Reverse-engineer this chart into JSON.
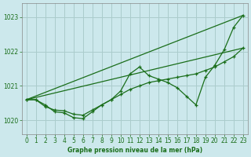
{
  "title": "Graphe pression niveau de la mer (hPa)",
  "bg_color": "#cce8ec",
  "grid_color": "#aacccc",
  "line_color": "#1a6e1a",
  "xlim": [
    -0.5,
    23.5
  ],
  "ylim": [
    1019.6,
    1023.4
  ],
  "xticks": [
    0,
    1,
    2,
    3,
    4,
    5,
    6,
    7,
    8,
    9,
    10,
    11,
    12,
    13,
    14,
    15,
    16,
    17,
    18,
    19,
    20,
    21,
    22,
    23
  ],
  "yticks": [
    1020,
    1021,
    1022,
    1023
  ],
  "line_straight1": {
    "x": [
      0,
      23
    ],
    "y": [
      1020.6,
      1023.05
    ]
  },
  "line_straight2": {
    "x": [
      0,
      23
    ],
    "y": [
      1020.6,
      1022.1
    ]
  },
  "line_jagged1": {
    "x": [
      0,
      1,
      2,
      3,
      4,
      5,
      6,
      7,
      8,
      9,
      10,
      11,
      12,
      13,
      14,
      15,
      16,
      17,
      18,
      19,
      20,
      21,
      22,
      23
    ],
    "y": [
      1020.6,
      1020.6,
      1020.45,
      1020.25,
      1020.22,
      1020.08,
      1020.05,
      1020.25,
      1020.45,
      1020.6,
      1020.85,
      1021.35,
      1021.55,
      1021.3,
      1021.2,
      1021.1,
      1020.95,
      1020.7,
      1020.45,
      1021.25,
      1021.6,
      1022.05,
      1022.7,
      1023.05
    ]
  },
  "line_jagged2": {
    "x": [
      0,
      1,
      2,
      3,
      4,
      5,
      6,
      7,
      8,
      9,
      10,
      11,
      12,
      13,
      14,
      15,
      16,
      17,
      18,
      19,
      20,
      21,
      22,
      23
    ],
    "y": [
      1020.6,
      1020.6,
      1020.4,
      1020.3,
      1020.28,
      1020.18,
      1020.15,
      1020.3,
      1020.45,
      1020.6,
      1020.75,
      1020.9,
      1021.0,
      1021.1,
      1021.15,
      1021.2,
      1021.25,
      1021.3,
      1021.35,
      1021.45,
      1021.55,
      1021.7,
      1021.85,
      1022.1
    ]
  }
}
